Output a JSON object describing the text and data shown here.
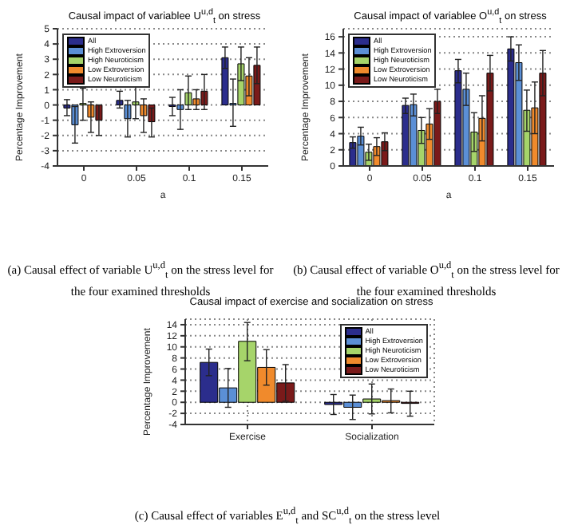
{
  "chart_data": [
    {
      "type": "bar",
      "title": "Causal impact of variablee U$^{u,d}$$_{t}$ on stress",
      "xlabel": "a",
      "ylabel": "Percentage Improvement",
      "categories": [
        "0",
        "0.05",
        "0.1",
        "0.15"
      ],
      "ylim": [
        -4,
        5
      ],
      "yticks": [
        -4,
        -3,
        -2,
        -1,
        0,
        1,
        2,
        3,
        4,
        5
      ],
      "grid": "y",
      "legend": "top left",
      "annotations": [
        "(a) Causal effect of variable U$^{u,d}$$_{t}$ on the stress level for the four examined thresholds"
      ],
      "series": [
        {
          "name": "All",
          "color": "#2b2d8c",
          "values": [
            -0.2,
            0.3,
            -0.1,
            3.1
          ],
          "errors": [
            [
              -0.7,
              0.35
            ],
            [
              -0.2,
              0.9
            ],
            [
              -0.7,
              0.5
            ],
            [
              2.4,
              3.8
            ]
          ]
        },
        {
          "name": "High Extroversion",
          "color": "#5b8fd6",
          "values": [
            -1.3,
            -0.9,
            -0.3,
            0.1
          ],
          "errors": [
            [
              -2.5,
              -0.1
            ],
            [
              -2.1,
              0.3
            ],
            [
              -1.6,
              1.0
            ],
            [
              -1.4,
              1.7
            ]
          ]
        },
        {
          "name": "High Neuroticism",
          "color": "#a6d46a",
          "values": [
            0.1,
            0.2,
            0.8,
            2.7
          ],
          "errors": [
            [
              -1.0,
              1.1
            ],
            [
              -0.9,
              1.3
            ],
            [
              -0.3,
              1.9
            ],
            [
              1.6,
              3.8
            ]
          ]
        },
        {
          "name": "Low Extroversion",
          "color": "#f08a2c",
          "values": [
            -0.8,
            -0.7,
            0.4,
            1.9
          ],
          "errors": [
            [
              -1.8,
              0.2
            ],
            [
              -1.8,
              0.4
            ],
            [
              -0.3,
              1.0
            ],
            [
              0.6,
              3.1
            ]
          ]
        },
        {
          "name": "Low Neuroticism",
          "color": "#7a1a1a",
          "values": [
            -1.0,
            -1.1,
            0.9,
            2.6
          ],
          "errors": [
            [
              -2.0,
              0.0
            ],
            [
              -2.1,
              -0.2
            ],
            [
              -0.3,
              2.0
            ],
            [
              1.4,
              3.8
            ]
          ]
        }
      ]
    },
    {
      "type": "bar",
      "title": "Causal impact of variablee O$^{u,d}$$_{t}$ on stress",
      "xlabel": "a",
      "ylabel": "Percentage Improvement",
      "categories": [
        "0",
        "0.05",
        "0.1",
        "0.15"
      ],
      "ylim": [
        0,
        17
      ],
      "yticks": [
        0,
        2,
        4,
        6,
        8,
        10,
        12,
        14,
        16
      ],
      "grid": "y",
      "legend": "top left",
      "annotations": [
        "(b) Causal effect of variable O$^{u,d}$$_{t}$ on the stress level for the four examined thresholds"
      ],
      "series": [
        {
          "name": "All",
          "color": "#2b2d8c",
          "values": [
            2.9,
            7.5,
            11.8,
            14.5
          ],
          "errors": [
            [
              2.2,
              3.6
            ],
            [
              6.5,
              8.4
            ],
            [
              10.3,
              13.2
            ],
            [
              13.0,
              16.0
            ]
          ]
        },
        {
          "name": "High Extroversion",
          "color": "#5b8fd6",
          "values": [
            3.7,
            7.6,
            9.5,
            12.8
          ],
          "errors": [
            [
              2.6,
              4.8
            ],
            [
              6.2,
              8.9
            ],
            [
              7.5,
              11.5
            ],
            [
              10.6,
              15.0
            ]
          ]
        },
        {
          "name": "High Neuroticism",
          "color": "#a6d46a",
          "values": [
            1.7,
            4.4,
            4.2,
            6.9
          ],
          "errors": [
            [
              0.7,
              2.7
            ],
            [
              2.8,
              6.0
            ],
            [
              1.8,
              6.6
            ],
            [
              4.3,
              9.4
            ]
          ]
        },
        {
          "name": "Low Extroversion",
          "color": "#f08a2c",
          "values": [
            2.4,
            5.2,
            5.9,
            7.2
          ],
          "errors": [
            [
              1.3,
              3.5
            ],
            [
              3.3,
              7.1
            ],
            [
              3.1,
              8.7
            ],
            [
              4.0,
              10.4
            ]
          ]
        },
        {
          "name": "Low Neuroticism",
          "color": "#7a1a1a",
          "values": [
            3.0,
            8.0,
            11.5,
            11.5
          ],
          "errors": [
            [
              1.9,
              4.1
            ],
            [
              6.5,
              9.5
            ],
            [
              9.3,
              13.7
            ],
            [
              8.7,
              14.3
            ]
          ]
        }
      ]
    },
    {
      "type": "bar",
      "title": "Causal impact of exercise and socialization on stress",
      "ylabel": "Percentage Improvement",
      "categories": [
        "Exercise",
        "Socialization"
      ],
      "ylim": [
        -4,
        15
      ],
      "yticks": [
        -4,
        -2,
        0,
        2,
        4,
        6,
        8,
        10,
        12,
        14
      ],
      "grid": true,
      "legend": "top right",
      "annotations": [
        "(c) Causal effect of variables E$^{u,d}$$_{t}$ and SC$^{u,d}$$_{t}$ on the stress level"
      ],
      "series": [
        {
          "name": "All",
          "color": "#2b2d8c",
          "values": [
            7.2,
            -0.4
          ],
          "errors": [
            [
              4.8,
              9.6
            ],
            [
              -2.2,
              1.4
            ]
          ]
        },
        {
          "name": "High Extroversion",
          "color": "#5b8fd6",
          "values": [
            2.6,
            -0.9
          ],
          "errors": [
            [
              -0.9,
              6.1
            ],
            [
              -3.1,
              1.3
            ]
          ]
        },
        {
          "name": "High Neuroticism",
          "color": "#a6d46a",
          "values": [
            11.0,
            0.6
          ],
          "errors": [
            [
              7.5,
              14.4
            ],
            [
              -2.1,
              3.3
            ]
          ]
        },
        {
          "name": "Low Extroversion",
          "color": "#f08a2c",
          "values": [
            6.3,
            0.3
          ],
          "errors": [
            [
              3.1,
              9.5
            ],
            [
              -1.9,
              2.4
            ]
          ]
        },
        {
          "name": "Low Neuroticism",
          "color": "#7a1a1a",
          "values": [
            3.5,
            -0.2
          ],
          "errors": [
            [
              0.2,
              6.8
            ],
            [
              -2.5,
              2.0
            ]
          ]
        }
      ]
    }
  ]
}
